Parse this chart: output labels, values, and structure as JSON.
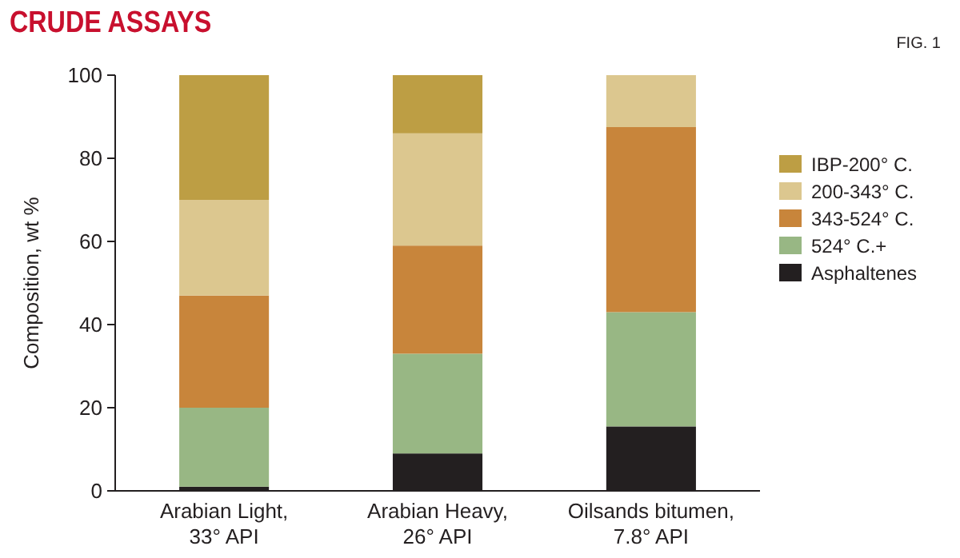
{
  "chart_data": {
    "type": "bar",
    "title": "CRUDE ASSAYS",
    "ylabel": "Composition, wt %",
    "annotations": [
      "FIG. 1"
    ],
    "categories": [
      "Arabian Light,\n33° API",
      "Arabian Heavy,\n26° API",
      "Oilsands bitumen,\n7.8° API"
    ],
    "stacked": true,
    "ylim": [
      0,
      100
    ],
    "yticks": [
      0,
      20,
      40,
      60,
      80,
      100
    ],
    "grid": false,
    "legend": "right",
    "series": [
      {
        "name": "Asphaltenes",
        "color": "#231f20",
        "values": [
          1,
          9,
          15.5
        ]
      },
      {
        "name": "524° C.+",
        "color": "#98b784",
        "values": [
          19,
          24,
          27.5
        ]
      },
      {
        "name": "343-524° C.",
        "color": "#c8853b",
        "values": [
          27,
          26,
          44.5
        ]
      },
      {
        "name": "200-343° C.",
        "color": "#dcc78f",
        "values": [
          23,
          27,
          12.5
        ]
      },
      {
        "name": "IBP-200° C.",
        "color": "#bd9e44",
        "values": [
          30,
          14,
          0
        ]
      }
    ]
  }
}
